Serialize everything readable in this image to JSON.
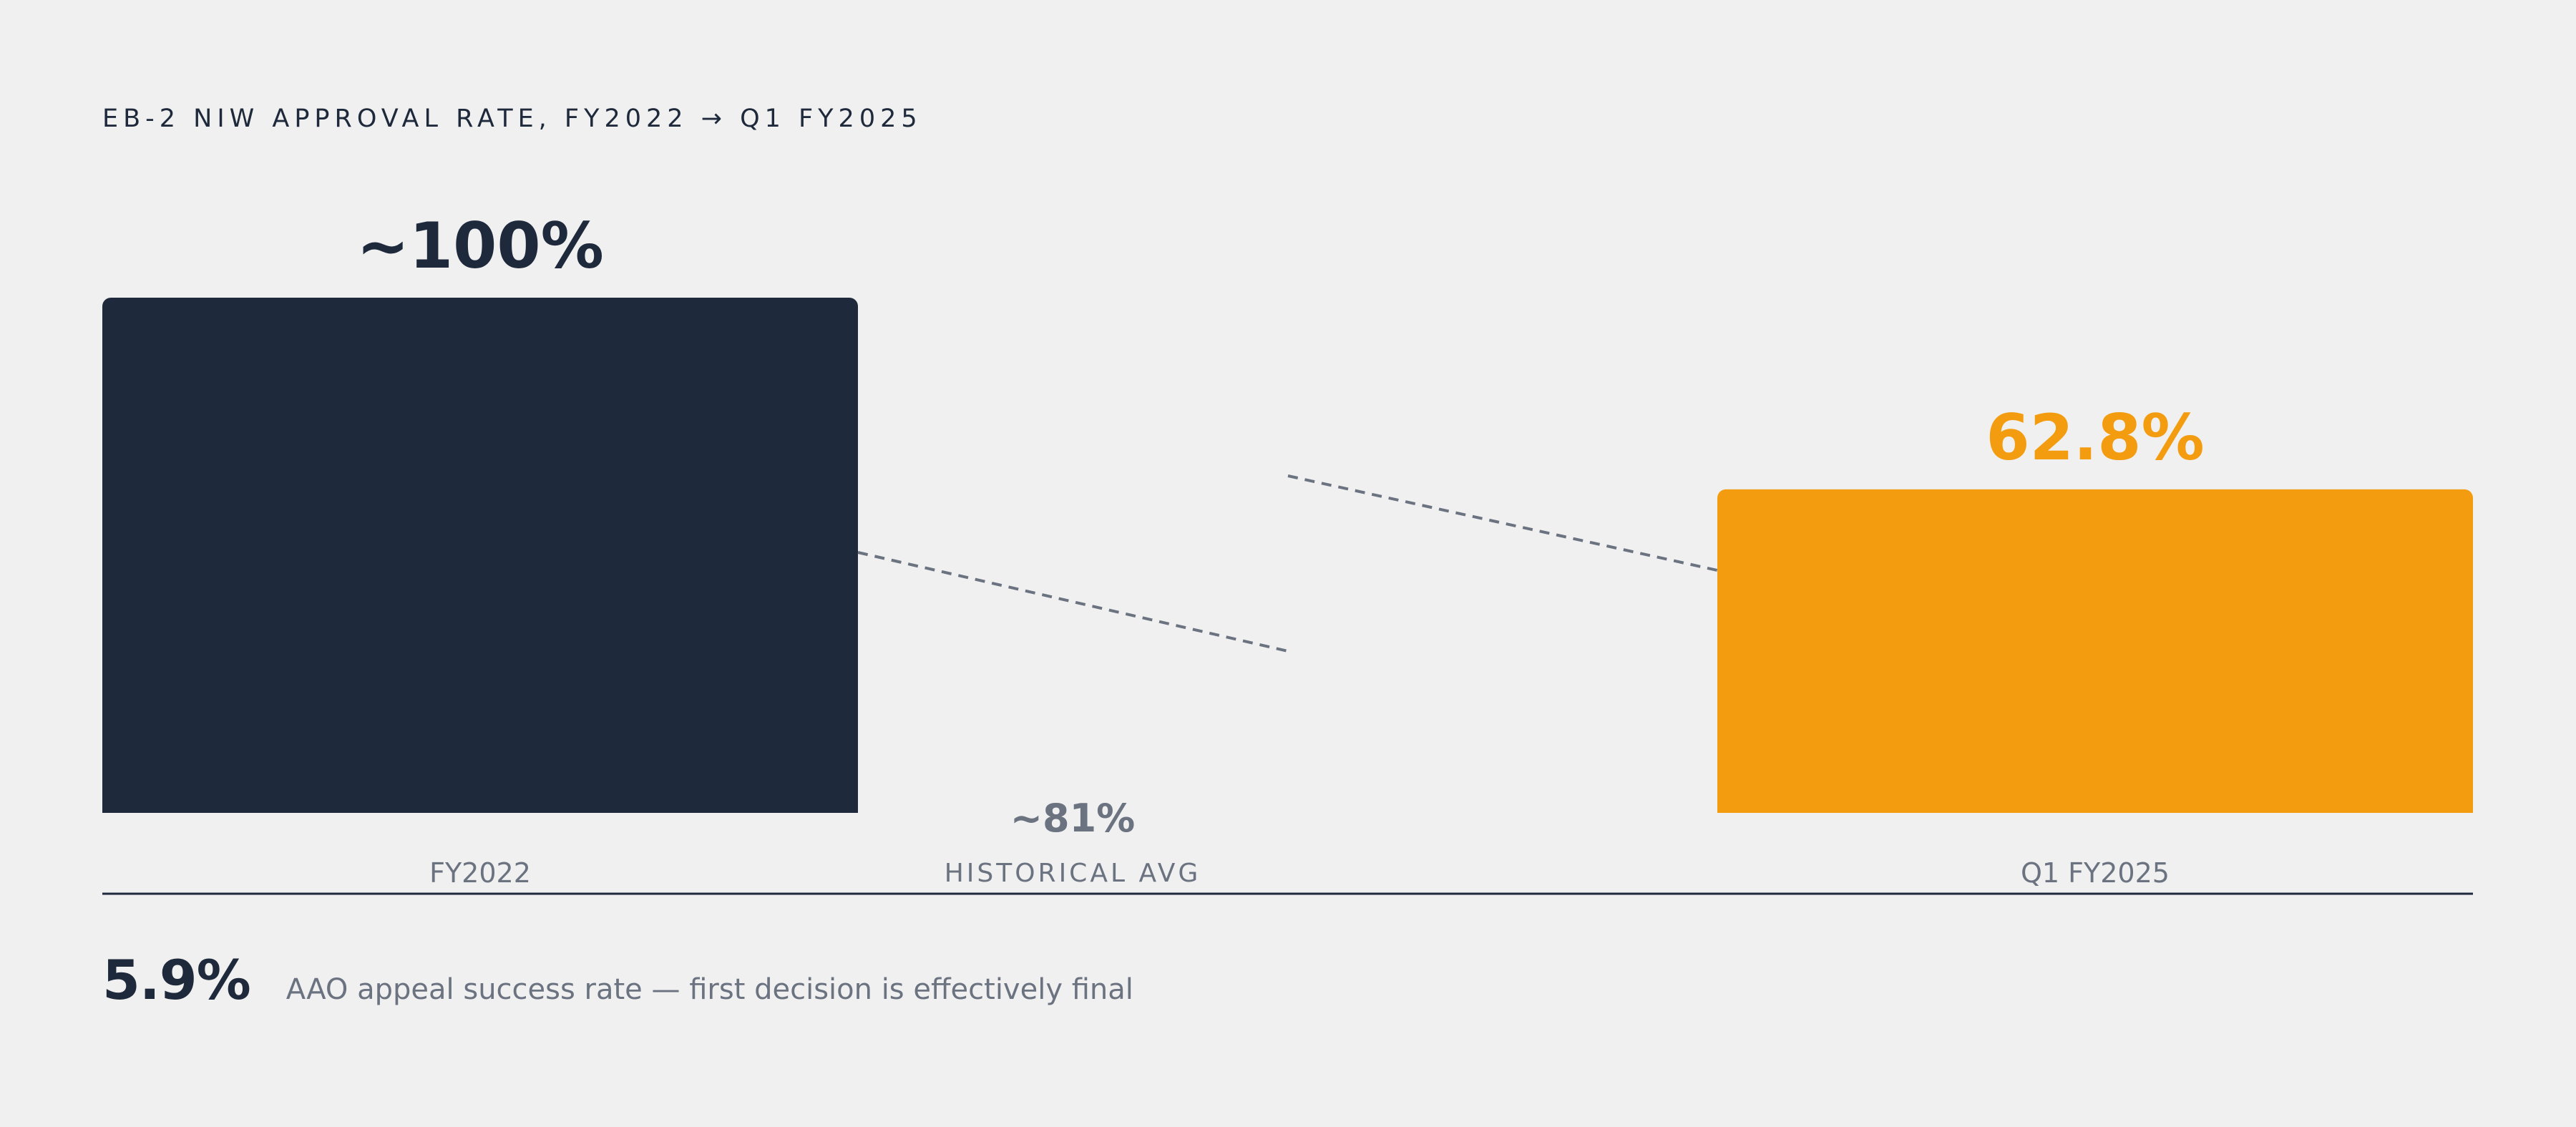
{
  "colors": {
    "background": "#f0f0f0",
    "navy": "#1e293b",
    "amber": "#f39c0f",
    "muted": "#6b7280"
  },
  "chart_data": {
    "type": "bar",
    "title": "EB-2 NIW APPROVAL RATE, FY2022 → Q1 FY2025",
    "categories": [
      "FY2022",
      "Q1 FY2025"
    ],
    "values": [
      100,
      62.8
    ],
    "value_labels": [
      "~100%",
      "62.8%"
    ],
    "bar_colors": [
      "#1e293b",
      "#f39c0f"
    ],
    "ylim": [
      0,
      100
    ],
    "grid": false,
    "legend": "none",
    "reference": {
      "label": "HISTORICAL AVG",
      "value": 81,
      "value_label": "~81%"
    }
  },
  "footer": {
    "stat": "5.9%",
    "text": "AAO appeal success rate — first decision is effectively final"
  }
}
